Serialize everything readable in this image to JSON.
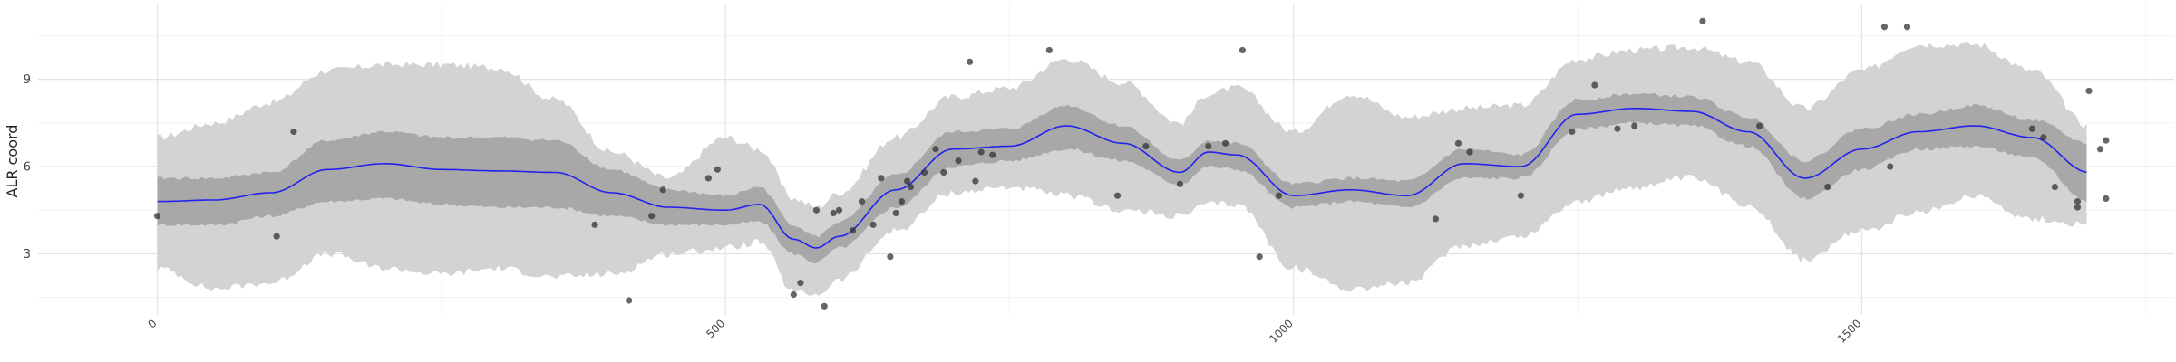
{
  "chart_data": {
    "type": "line",
    "title": "",
    "xlabel": "",
    "ylabel": "ALR coord",
    "xlim": [
      -105,
      1775
    ],
    "ylim": [
      0.9,
      11.6
    ],
    "x_ticks": [
      0,
      500,
      1000,
      1500
    ],
    "x_tick_labels": [
      "0",
      "500",
      "1000",
      "1500"
    ],
    "x_minor_ticks": [
      250,
      750,
      1250,
      1750
    ],
    "y_ticks": [
      3,
      6,
      9
    ],
    "y_tick_labels": [
      "3",
      "6",
      "9"
    ],
    "y_minor_ticks": [
      1.5,
      4.5,
      7.5,
      10.5
    ],
    "grid": true,
    "colors": {
      "line": "#2222ee",
      "outer_band": "#d3d3d3",
      "inner_band": "#a8a8a8",
      "points": "#333333"
    },
    "series": [
      {
        "kind": "line",
        "x": [
          0,
          50,
          100,
          150,
          200,
          250,
          300,
          350,
          400,
          450,
          500,
          530,
          560,
          580,
          600,
          650,
          700,
          750,
          800,
          850,
          900,
          925,
          950,
          1000,
          1050,
          1100,
          1150,
          1200,
          1250,
          1300,
          1350,
          1400,
          1450,
          1500,
          1550,
          1600,
          1650,
          1700
        ],
        "y": [
          4.8,
          4.85,
          5.1,
          5.9,
          6.1,
          5.9,
          5.85,
          5.8,
          5.1,
          4.6,
          4.5,
          4.7,
          3.5,
          3.2,
          3.6,
          5.2,
          6.6,
          6.7,
          7.4,
          6.8,
          5.8,
          6.5,
          6.4,
          5.0,
          5.2,
          5.0,
          6.1,
          6.0,
          7.8,
          8.0,
          7.9,
          7.2,
          5.6,
          6.6,
          7.2,
          7.4,
          7.0,
          5.8
        ]
      },
      {
        "kind": "band",
        "x": [
          0,
          50,
          100,
          150,
          200,
          250,
          300,
          350,
          400,
          450,
          500,
          530,
          560,
          580,
          600,
          650,
          700,
          750,
          800,
          850,
          900,
          925,
          950,
          1000,
          1050,
          1100,
          1150,
          1200,
          1250,
          1300,
          1350,
          1400,
          1450,
          1500,
          1550,
          1600,
          1650,
          1700
        ],
        "lower": [
          4.0,
          4.0,
          4.3,
          4.8,
          4.9,
          4.7,
          4.6,
          4.6,
          4.3,
          4.0,
          4.0,
          4.1,
          3.0,
          2.7,
          3.2,
          4.6,
          6.0,
          6.2,
          6.6,
          6.2,
          5.4,
          6.0,
          5.9,
          4.6,
          4.8,
          4.6,
          5.6,
          5.6,
          7.3,
          7.5,
          7.4,
          6.7,
          4.9,
          5.9,
          6.6,
          6.7,
          6.3,
          4.8
        ],
        "upper": [
          5.6,
          5.6,
          5.8,
          6.9,
          7.2,
          7.0,
          7.0,
          6.9,
          5.9,
          5.2,
          5.0,
          5.3,
          4.0,
          3.6,
          4.1,
          5.7,
          7.2,
          7.3,
          8.1,
          7.4,
          6.2,
          6.9,
          6.8,
          5.4,
          5.6,
          5.5,
          6.6,
          6.4,
          8.3,
          8.5,
          8.4,
          7.7,
          6.2,
          7.3,
          7.8,
          8.1,
          7.6,
          6.8
        ]
      },
      {
        "kind": "band",
        "x": [
          0,
          50,
          100,
          150,
          200,
          250,
          300,
          350,
          400,
          450,
          500,
          530,
          560,
          580,
          600,
          650,
          700,
          750,
          800,
          850,
          900,
          925,
          950,
          1000,
          1050,
          1100,
          1150,
          1200,
          1250,
          1300,
          1350,
          1400,
          1450,
          1500,
          1550,
          1600,
          1650,
          1700
        ],
        "lower": [
          2.5,
          1.8,
          2.0,
          3.0,
          2.5,
          2.3,
          2.5,
          2.2,
          2.3,
          3.0,
          3.2,
          3.4,
          1.7,
          1.6,
          2.1,
          3.8,
          5.1,
          5.3,
          5.0,
          4.5,
          4.3,
          4.7,
          4.7,
          2.5,
          1.8,
          2.0,
          3.3,
          3.6,
          4.8,
          5.3,
          5.6,
          4.7,
          2.8,
          3.8,
          4.4,
          5.0,
          4.2,
          4.0
        ],
        "upper": [
          7.0,
          7.5,
          8.2,
          9.3,
          9.5,
          9.5,
          9.4,
          8.3,
          6.5,
          5.6,
          7.0,
          6.6,
          4.9,
          4.6,
          5.1,
          7.0,
          8.4,
          8.7,
          9.7,
          8.9,
          7.5,
          8.5,
          8.7,
          7.2,
          8.5,
          7.7,
          8.0,
          8.1,
          9.7,
          10.0,
          10.1,
          9.6,
          8.0,
          9.3,
          10.2,
          10.2,
          9.3,
          7.4
        ]
      },
      {
        "kind": "points",
        "x": [
          0,
          105,
          120,
          385,
          415,
          435,
          445,
          485,
          493,
          560,
          566,
          580,
          587,
          595,
          600,
          612,
          620,
          630,
          637,
          645,
          650,
          655,
          660,
          663,
          675,
          685,
          692,
          705,
          715,
          720,
          725,
          735,
          785,
          845,
          870,
          900,
          925,
          940,
          955,
          970,
          987,
          1125,
          1145,
          1155,
          1200,
          1245,
          1265,
          1285,
          1300,
          1360,
          1410,
          1470,
          1520,
          1525,
          1540,
          1650,
          1660,
          1670,
          1710,
          1715,
          1715,
          1700,
          1690,
          1690
        ],
        "y": [
          4.3,
          3.6,
          7.2,
          4.0,
          1.4,
          4.3,
          5.2,
          5.6,
          5.9,
          1.6,
          2.0,
          4.5,
          1.2,
          4.4,
          4.5,
          3.8,
          4.8,
          4.0,
          5.6,
          2.9,
          4.4,
          4.8,
          5.5,
          5.3,
          5.8,
          6.6,
          5.8,
          6.2,
          9.6,
          5.5,
          6.5,
          6.4,
          10.0,
          5.0,
          6.7,
          5.4,
          6.7,
          6.8,
          10.0,
          2.9,
          5.0,
          4.2,
          6.8,
          6.5,
          5.0,
          7.2,
          8.8,
          7.3,
          7.4,
          11.0,
          7.4,
          5.3,
          10.8,
          6.0,
          10.8,
          7.3,
          7.0,
          5.3,
          6.6,
          4.9,
          6.9,
          8.6,
          4.8,
          4.6
        ]
      }
    ]
  }
}
